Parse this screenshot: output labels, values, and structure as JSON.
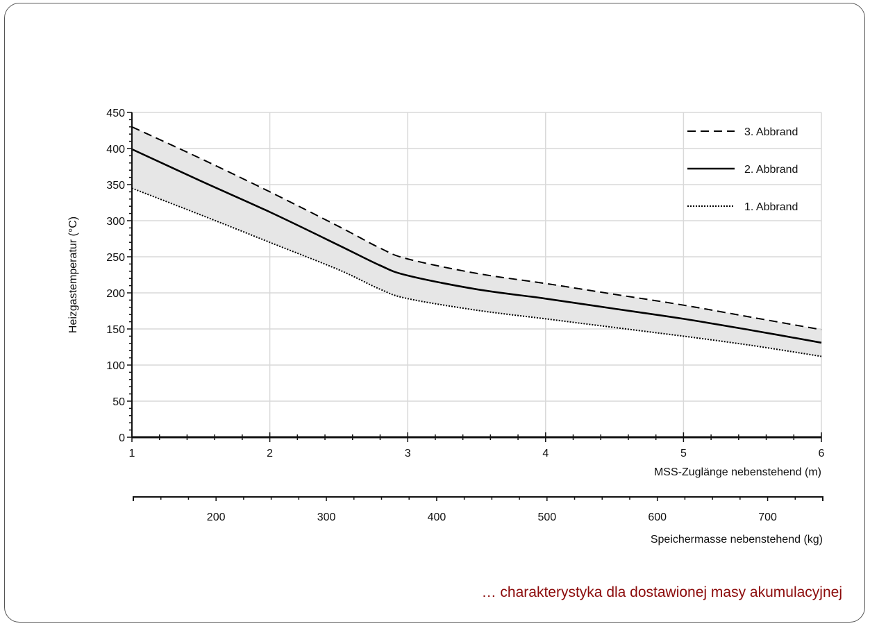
{
  "caption": "… charakterystyka dla dostawionej masy akumulacyjnej",
  "colors": {
    "caption": "#8b0a0a",
    "band": "#e6e6e6",
    "grid": "#d9d9d9",
    "line": "#000000"
  },
  "chart_data": {
    "type": "line",
    "ylabel": "Heizgastemperatur (°C)",
    "xlabel": "MSS-Zuglänge nebenstehend (m)",
    "x2label": "Speichermasse nebenstehend (kg)",
    "xlim": [
      1,
      6
    ],
    "ylim": [
      0,
      450
    ],
    "x2lim": [
      125,
      750
    ],
    "xticks": [
      "1",
      "2",
      "3",
      "4",
      "5",
      "6"
    ],
    "yticks": [
      "0",
      "50",
      "100",
      "150",
      "200",
      "250",
      "300",
      "350",
      "400",
      "450"
    ],
    "x2ticks": [
      "200",
      "300",
      "400",
      "500",
      "600",
      "700"
    ],
    "grid": true,
    "legend_position": "top-right",
    "shaded_band": "between 1. Abbrand and 3. Abbrand",
    "series": [
      {
        "name": "3. Abbrand",
        "style": "dashed",
        "x": [
          1,
          1.5,
          2,
          2.5,
          2.8,
          3,
          3.5,
          4,
          4.5,
          5,
          5.5,
          6
        ],
        "y": [
          430,
          386,
          340,
          292,
          262,
          247,
          227,
          213,
          198,
          183,
          166,
          149
        ]
      },
      {
        "name": "2. Abbrand",
        "style": "solid",
        "x": [
          1,
          1.5,
          2,
          2.5,
          2.8,
          3,
          3.5,
          4,
          4.5,
          5,
          5.5,
          6
        ],
        "y": [
          399,
          355,
          312,
          266,
          238,
          224,
          205,
          192,
          178,
          164,
          148,
          131
        ]
      },
      {
        "name": "1. Abbrand",
        "style": "dotted",
        "x": [
          1,
          1.5,
          2,
          2.5,
          2.8,
          3,
          3.5,
          4,
          4.5,
          5,
          5.5,
          6
        ],
        "y": [
          345,
          308,
          270,
          232,
          205,
          192,
          176,
          164,
          152,
          140,
          127,
          112
        ]
      }
    ]
  }
}
